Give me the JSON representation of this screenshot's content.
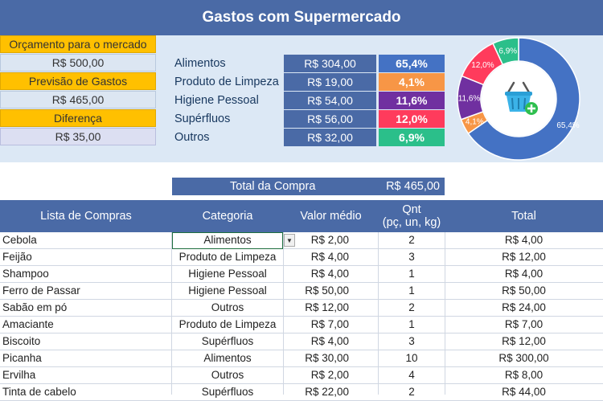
{
  "title": "Gastos com Supermercado",
  "budget": {
    "label_budget": "Orçamento para o mercado",
    "value_budget": "R$ 500,00",
    "label_forecast": "Previsão de Gastos",
    "value_forecast": "R$ 465,00",
    "label_diff": "Diferença",
    "value_diff": "R$ 35,00"
  },
  "categories": [
    {
      "label": "Alimentos",
      "value": "R$ 304,00",
      "pct": "65,4%",
      "color": "#4472c4",
      "share": 65.4
    },
    {
      "label": "Produto de Limpeza",
      "value": "R$ 19,00",
      "pct": "4,1%",
      "color": "#f79646",
      "share": 4.1
    },
    {
      "label": "Higiene Pessoal",
      "value": "R$ 54,00",
      "pct": "11,6%",
      "color": "#7030a0",
      "share": 11.6
    },
    {
      "label": "Supérfluos",
      "value": "R$ 56,00",
      "pct": "12,0%",
      "color": "#ff3b5c",
      "share": 12.0
    },
    {
      "label": "Outros",
      "value": "R$ 32,00",
      "pct": "6,9%",
      "color": "#2bbf8a",
      "share": 6.9
    }
  ],
  "icons": {
    "basket": "shopping-basket-add-icon",
    "dropdown": "dropdown-arrow-icon"
  },
  "total": {
    "label": "Total da Compra",
    "value": "R$ 465,00"
  },
  "table": {
    "headers": {
      "item": "Lista de Compras",
      "category": "Categoria",
      "price": "Valor médio",
      "qty_line1": "Qnt",
      "qty_line2": "(pç, un, kg)",
      "total": "Total"
    },
    "rows": [
      {
        "item": "Cebola",
        "category": "Alimentos",
        "price": "R$ 2,00",
        "qty": "2",
        "total": "R$ 4,00"
      },
      {
        "item": "Feijão",
        "category": "Produto de Limpeza",
        "price": "R$ 4,00",
        "qty": "3",
        "total": "R$ 12,00"
      },
      {
        "item": "Shampoo",
        "category": "Higiene Pessoal",
        "price": "R$ 4,00",
        "qty": "1",
        "total": "R$ 4,00"
      },
      {
        "item": "Ferro de Passar",
        "category": "Higiene Pessoal",
        "price": "R$ 50,00",
        "qty": "1",
        "total": "R$ 50,00"
      },
      {
        "item": "Sabão em pó",
        "category": "Outros",
        "price": "R$ 12,00",
        "qty": "2",
        "total": "R$ 24,00"
      },
      {
        "item": "Amaciante",
        "category": "Produto de Limpeza",
        "price": "R$ 7,00",
        "qty": "1",
        "total": "R$ 7,00"
      },
      {
        "item": "Biscoito",
        "category": "Supérfluos",
        "price": "R$ 4,00",
        "qty": "3",
        "total": "R$ 12,00"
      },
      {
        "item": "Picanha",
        "category": "Alimentos",
        "price": "R$ 30,00",
        "qty": "10",
        "total": "R$ 300,00"
      },
      {
        "item": "Ervilha",
        "category": "Outros",
        "price": "R$ 2,00",
        "qty": "4",
        "total": "R$ 8,00"
      },
      {
        "item": "Tinta de cabelo",
        "category": "Supérfluos",
        "price": "R$ 22,00",
        "qty": "2",
        "total": "R$ 44,00"
      }
    ]
  }
}
